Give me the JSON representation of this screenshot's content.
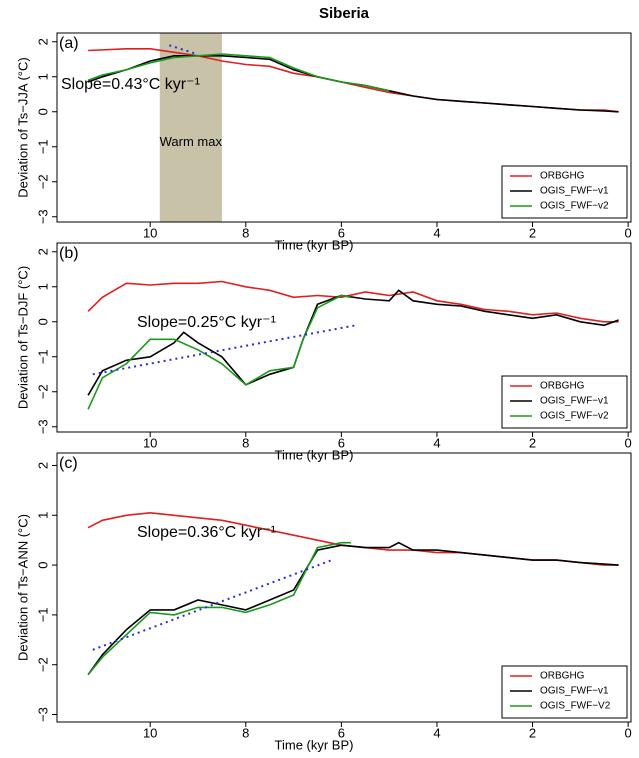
{
  "title": "Siberia",
  "chart_data": [
    {
      "type": "line",
      "panel_label": "(a)",
      "xlabel": "Time (kyr BP)",
      "ylabel": "Deviation of Ts−JJA (°C)",
      "annotation": "Slope=0.43°C kyr⁻¹",
      "shade": [
        9.8,
        8.5
      ],
      "shade_label": "Warm max",
      "shade_color": "#c8c2a8",
      "xlim": [
        11.95,
        -0.06
      ],
      "xticks": [
        10,
        8,
        6,
        4,
        2,
        0
      ],
      "ylim": [
        -3.15,
        2.25
      ],
      "yticks": [
        {
          "value": -3,
          "label": "−3"
        },
        {
          "value": -2,
          "label": "−2"
        },
        {
          "value": -1,
          "label": "−1"
        },
        0,
        1,
        2
      ],
      "legend": "bottom-right",
      "trend": {
        "color": "#2b2bd6",
        "x": [
          9.6,
          9.0
        ],
        "values": [
          1.9,
          1.64
        ]
      },
      "series": [
        {
          "name": "ORBGHG",
          "color": "#e02020",
          "x": [
            11.3,
            10.5,
            10,
            9.5,
            9,
            8.5,
            8,
            7.5,
            7,
            6.5,
            6,
            5.5,
            5,
            4.5,
            4,
            3.5,
            3,
            2.5,
            2,
            1.5,
            1,
            0.5,
            0.2
          ],
          "values": [
            1.75,
            1.8,
            1.8,
            1.7,
            1.6,
            1.45,
            1.35,
            1.3,
            1.1,
            1.0,
            0.85,
            0.7,
            0.55,
            0.45,
            0.35,
            0.3,
            0.25,
            0.2,
            0.15,
            0.1,
            0.05,
            0.05,
            0.0
          ]
        },
        {
          "name": "OGIS_FWF−v1",
          "color": "#000000",
          "x": [
            11.3,
            11,
            10.5,
            10,
            9.5,
            9,
            8.5,
            8,
            7.5,
            7,
            6.5,
            6,
            5.5,
            5,
            4.5,
            4,
            3.5,
            3,
            2.5,
            2,
            1.5,
            1,
            0.5,
            0.2
          ],
          "values": [
            0.85,
            1.0,
            1.2,
            1.45,
            1.6,
            1.6,
            1.6,
            1.55,
            1.5,
            1.2,
            1.0,
            0.85,
            0.75,
            0.6,
            0.45,
            0.35,
            0.3,
            0.25,
            0.2,
            0.15,
            0.1,
            0.05,
            0.02,
            0.0
          ]
        },
        {
          "name": "OGIS_FWF−v2",
          "color": "#1a9a1a",
          "x": [
            11.3,
            11,
            10.5,
            10,
            9.5,
            9,
            8.5,
            8,
            7.5,
            7,
            6.5,
            6,
            5.5,
            5
          ],
          "values": [
            0.9,
            1.05,
            1.2,
            1.4,
            1.55,
            1.6,
            1.65,
            1.6,
            1.55,
            1.25,
            1.0,
            0.85,
            0.75,
            0.6
          ]
        }
      ]
    },
    {
      "type": "line",
      "panel_label": "(b)",
      "xlabel": "Time (kyr BP)",
      "ylabel": "Deviation of Ts−DJF (°C)",
      "annotation": "Slope=0.25°C kyr⁻¹",
      "xlim": [
        11.95,
        -0.06
      ],
      "xticks": [
        10,
        8,
        6,
        4,
        2,
        0
      ],
      "ylim": [
        -3.15,
        2.25
      ],
      "yticks": [
        {
          "value": -3,
          "label": "−3"
        },
        {
          "value": -2,
          "label": "−2"
        },
        {
          "value": -1,
          "label": "−1"
        },
        0,
        1,
        2
      ],
      "legend": "bottom-right",
      "trend": {
        "color": "#2b2bd6",
        "x": [
          11.2,
          5.7
        ],
        "values": [
          -1.5,
          -0.1
        ]
      },
      "series": [
        {
          "name": "ORBGHG",
          "color": "#e02020",
          "x": [
            11.3,
            11,
            10.5,
            10,
            9.5,
            9,
            8.5,
            8,
            7.5,
            7,
            6.5,
            6,
            5.5,
            5,
            4.5,
            4,
            3.5,
            3,
            2.5,
            2,
            1.5,
            1,
            0.5,
            0.2
          ],
          "values": [
            0.3,
            0.7,
            1.1,
            1.05,
            1.1,
            1.1,
            1.15,
            1.0,
            0.9,
            0.7,
            0.75,
            0.7,
            0.85,
            0.75,
            0.85,
            0.6,
            0.5,
            0.35,
            0.3,
            0.2,
            0.25,
            0.1,
            0.0,
            0.0
          ]
        },
        {
          "name": "OGIS_FWF−v1",
          "color": "#000000",
          "x": [
            11.3,
            11,
            10.5,
            10,
            9.5,
            9.3,
            9,
            8.5,
            8,
            7.5,
            7,
            6.8,
            6.5,
            6,
            5.5,
            5,
            4.8,
            4.5,
            4,
            3.5,
            3,
            2.5,
            2,
            1.5,
            1,
            0.5,
            0.2
          ],
          "values": [
            -2.1,
            -1.4,
            -1.1,
            -1.0,
            -0.6,
            -0.3,
            -0.6,
            -1.0,
            -1.8,
            -1.5,
            -1.3,
            -0.5,
            0.5,
            0.75,
            0.65,
            0.6,
            0.9,
            0.6,
            0.5,
            0.45,
            0.3,
            0.2,
            0.1,
            0.2,
            0.0,
            -0.1,
            0.05
          ]
        },
        {
          "name": "OGIS_FWF−v2",
          "color": "#1a9a1a",
          "x": [
            11.3,
            11,
            10.5,
            10,
            9.5,
            9,
            8.5,
            8,
            7.5,
            7,
            6.8,
            6.5,
            6,
            5.8
          ],
          "values": [
            -2.5,
            -1.6,
            -1.2,
            -0.5,
            -0.5,
            -0.8,
            -1.2,
            -1.8,
            -1.4,
            -1.3,
            -0.5,
            0.4,
            0.75,
            0.7
          ]
        }
      ]
    },
    {
      "type": "line",
      "panel_label": "(c)",
      "xlabel": "Time (kyr BP)",
      "ylabel": "Deviation of Ts−ANN (°C)",
      "annotation": "Slope=0.36°C kyr⁻¹",
      "xlim": [
        11.95,
        -0.06
      ],
      "xticks": [
        10,
        8,
        6,
        4,
        2,
        0
      ],
      "ylim": [
        -3.15,
        2.25
      ],
      "yticks": [
        {
          "value": -3,
          "label": "−3"
        },
        {
          "value": -2,
          "label": "−2"
        },
        {
          "value": -1,
          "label": "−1"
        },
        0,
        1,
        2
      ],
      "legend": "bottom-right",
      "trend": {
        "color": "#2b2bd6",
        "x": [
          11.2,
          6.2
        ],
        "values": [
          -1.7,
          0.1
        ]
      },
      "series": [
        {
          "name": "ORBGHG",
          "color": "#e02020",
          "x": [
            11.3,
            11,
            10.5,
            10,
            9.5,
            9,
            8.5,
            8,
            7.5,
            7,
            6.5,
            6,
            5.5,
            5,
            4.5,
            4,
            3.5,
            3,
            2.5,
            2,
            1.5,
            1,
            0.5,
            0.2
          ],
          "values": [
            0.75,
            0.9,
            1.0,
            1.05,
            1.0,
            0.95,
            0.9,
            0.8,
            0.7,
            0.6,
            0.5,
            0.4,
            0.35,
            0.3,
            0.3,
            0.25,
            0.25,
            0.2,
            0.15,
            0.1,
            0.1,
            0.05,
            0.0,
            0.0
          ]
        },
        {
          "name": "OGIS_FWF−v1",
          "color": "#000000",
          "x": [
            11.3,
            11,
            10.5,
            10,
            9.5,
            9,
            8.5,
            8,
            7.5,
            7,
            6.5,
            6,
            5.5,
            5,
            4.8,
            4.5,
            4,
            3.5,
            3,
            2.5,
            2,
            1.5,
            1,
            0.5,
            0.2
          ],
          "values": [
            -2.2,
            -1.8,
            -1.3,
            -0.9,
            -0.9,
            -0.7,
            -0.8,
            -0.9,
            -0.7,
            -0.5,
            0.3,
            0.4,
            0.35,
            0.35,
            0.45,
            0.3,
            0.3,
            0.25,
            0.2,
            0.15,
            0.1,
            0.1,
            0.05,
            0.02,
            0.0
          ]
        },
        {
          "name": "OGIS_FWF−V2",
          "color": "#1a9a1a",
          "x": [
            11.3,
            11,
            10.5,
            10,
            9.5,
            9,
            8.5,
            8,
            7.5,
            7,
            6.5,
            6,
            5.8
          ],
          "values": [
            -2.2,
            -1.85,
            -1.4,
            -0.95,
            -1.0,
            -0.85,
            -0.85,
            -0.95,
            -0.8,
            -0.6,
            0.35,
            0.45,
            0.45
          ]
        }
      ]
    }
  ]
}
